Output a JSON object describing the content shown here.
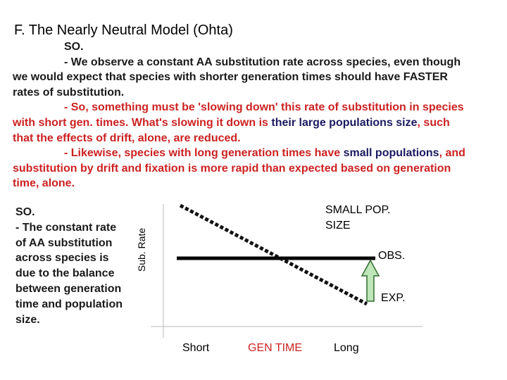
{
  "title": "F. The Nearly Neutral Model (Ohta)",
  "intro": {
    "so": "SO.",
    "p1": "- We observe a constant AA substitution rate across species, even though we would expect that species with shorter generation times should have FASTER rates of substitution.",
    "p2a": "- So, something must be 'slowing down' this rate of substitution in species with short gen. times. What's slowing it down is ",
    "p2b": "their large populations size",
    "p2c": ", such that the effects of drift, alone, are reduced.",
    "p3a": "- Likewise, species with long generation times have ",
    "p3b": "small populations",
    "p3c": ", and substitution by drift and fixation is more rapid than expected based on generation time, alone."
  },
  "sidebar": {
    "so": "SO.",
    "text": "- The constant rate of AA substitution across species is due to the balance between generation time and population size."
  },
  "diagram": {
    "y_axis_label": "Sub. Rate",
    "small_pop_line1": "SMALL POP.",
    "small_pop_line2": "SIZE",
    "obs_label": "OBS.",
    "exp_label": "EXP.",
    "x_short": "Short",
    "x_label": "GEN TIME",
    "x_long": "Long"
  },
  "colors": {
    "red_text": "#cc2222",
    "navy_text": "#1a1a60",
    "arrow_fill": "#bfe6b8",
    "arrow_stroke": "#2e6b2e"
  }
}
